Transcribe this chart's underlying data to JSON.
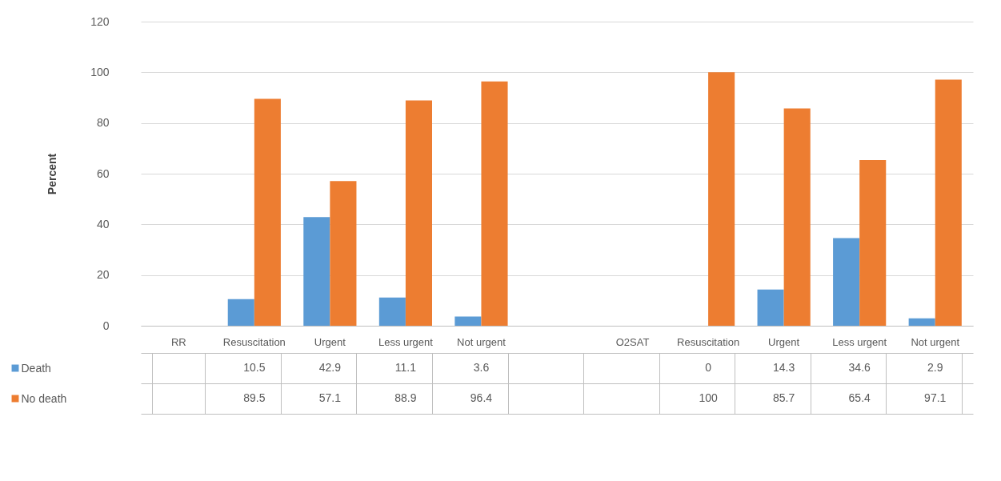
{
  "chart_data": {
    "type": "bar",
    "ylabel": "Percent",
    "categories": [
      "RR",
      "Resuscitation",
      "Urgent",
      "Less urgent",
      "Not urgent",
      null,
      "O2SAT",
      "Resuscitation",
      "Urgent",
      "Less urgent",
      "Not urgent"
    ],
    "series": [
      {
        "name": "Death",
        "color": "#5b9bd5",
        "values": [
          null,
          10.5,
          42.9,
          11.1,
          3.6,
          null,
          null,
          0,
          14.3,
          34.6,
          2.9
        ]
      },
      {
        "name": "No death",
        "color": "#ed7d31",
        "values": [
          null,
          89.5,
          57.1,
          88.9,
          96.4,
          null,
          null,
          100,
          85.7,
          65.4,
          97.1
        ]
      }
    ],
    "ylim": [
      0,
      120
    ],
    "yticks": [
      0,
      20,
      40,
      60,
      80,
      100,
      120
    ],
    "grid": "y",
    "legend": "bottom",
    "data_labels": true
  }
}
